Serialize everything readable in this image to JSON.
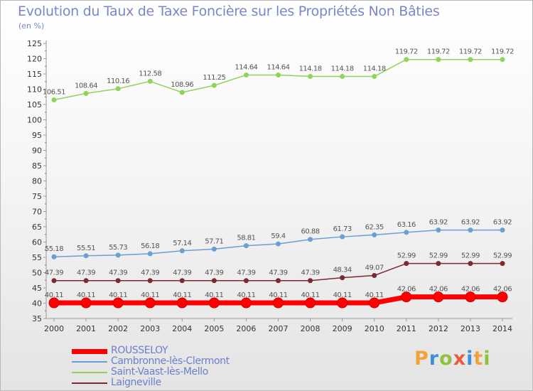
{
  "chart_data": {
    "type": "line",
    "title": "Evolution du Taux de Taxe Foncière sur les Propriétés Non Bâties",
    "subtitle": "(en %)",
    "x": [
      "2000",
      "2001",
      "2002",
      "2003",
      "2004",
      "2005",
      "2006",
      "2007",
      "2008",
      "2009",
      "2010",
      "2011",
      "2012",
      "2013",
      "2014"
    ],
    "ylim": [
      35,
      125
    ],
    "yticks": [
      35,
      40,
      45,
      50,
      55,
      60,
      65,
      70,
      75,
      80,
      85,
      90,
      95,
      100,
      105,
      110,
      115,
      120,
      125
    ],
    "grid": false,
    "legend_position": "bottom-left",
    "series": [
      {
        "name": "ROUSSELOY",
        "color": "#ff0000",
        "values": [
          40.11,
          40.11,
          40.11,
          40.11,
          40.11,
          40.11,
          40.11,
          40.11,
          40.11,
          40.11,
          40.11,
          42.06,
          42.06,
          42.06,
          42.06
        ],
        "labels": [
          "40.11",
          "40.11",
          "40.11",
          "40.11",
          "40.11",
          "40.11",
          "40.11",
          "40.11",
          "40.11",
          "40.11",
          "40.11",
          "42.06",
          "42.06",
          "42.06",
          "42.06"
        ]
      },
      {
        "name": "Cambronne-lès-Clermont",
        "color": "#6a9fd4",
        "values": [
          55.18,
          55.51,
          55.73,
          56.18,
          57.14,
          57.71,
          58.81,
          59.4,
          60.88,
          61.73,
          62.35,
          63.16,
          63.92,
          63.92,
          63.92
        ],
        "labels": [
          "55.18",
          "55.51",
          "55.73",
          "56.18",
          "57.14",
          "57.71",
          "58.81",
          "59.4",
          "60.88",
          "61.73",
          "62.35",
          "63.16",
          "63.92",
          "63.92",
          "63.92"
        ]
      },
      {
        "name": "Saint-Vaast-lès-Mello",
        "color": "#8fd45a",
        "values": [
          106.51,
          108.64,
          110.16,
          112.58,
          108.96,
          111.25,
          114.64,
          114.64,
          114.18,
          114.18,
          114.18,
          119.72,
          119.72,
          119.72,
          119.72
        ],
        "labels": [
          "106.51",
          "108.64",
          "110.16",
          "112.58",
          "108.96",
          "111.25",
          "114.64",
          "114.64",
          "114.18",
          "114.18",
          "114.18",
          "119.72",
          "119.72",
          "119.72",
          "119.72"
        ]
      },
      {
        "name": "Laigneville",
        "color": "#7a2a30",
        "values": [
          47.39,
          47.39,
          47.39,
          47.39,
          47.39,
          47.39,
          47.39,
          47.39,
          47.39,
          48.34,
          49.07,
          52.99,
          52.99,
          52.99,
          52.99
        ],
        "labels": [
          "47.39",
          "47.39",
          "47.39",
          "47.39",
          "47.39",
          "47.39",
          "47.39",
          "47.39",
          "47.39",
          "48.34",
          "49.07",
          "52.99",
          "52.99",
          "52.99",
          "52.99"
        ]
      }
    ]
  },
  "branding": {
    "logo_letters": [
      "P",
      "r",
      "o",
      "x",
      "i",
      "t",
      "i"
    ]
  },
  "colors": {
    "title": "#7b86c8",
    "axis": "#9a9a9a",
    "legend_text": "#6c7fce"
  }
}
